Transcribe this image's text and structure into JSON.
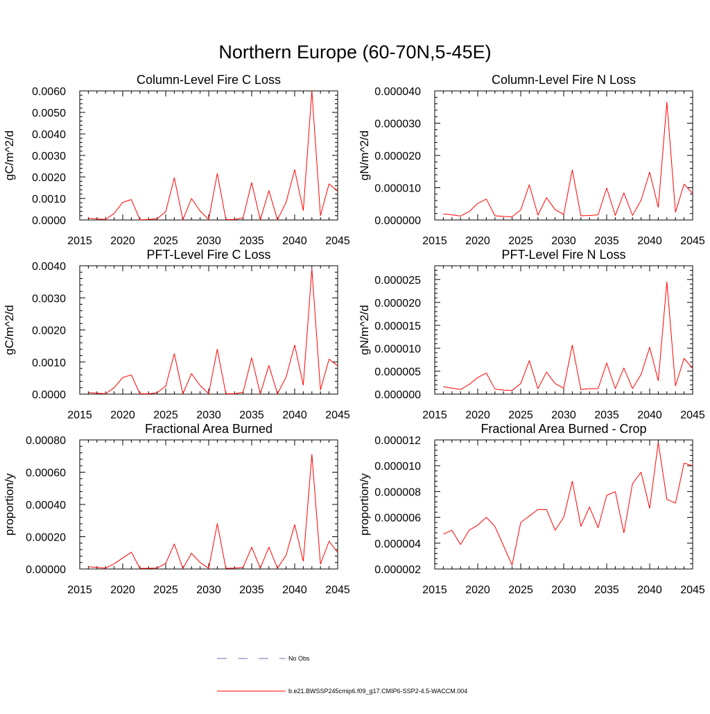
{
  "figure_title": "Northern Europe (60-70N,5-45E)",
  "legend": {
    "obs_label": "No Obs",
    "obs_color": "#6b6bb0",
    "model_label": "b.e21.BWSSP245cmip6.f09_g17.CMIP6-SSP2-4.5-WACCM.004",
    "model_color": "#ff0000"
  },
  "chart_data": [
    {
      "type": "line",
      "title": "Column-Level Fire C Loss",
      "ylabel": "gC/m^2/d",
      "xlim": [
        2015,
        2045
      ],
      "ylim": [
        0,
        0.006
      ],
      "xticks": [
        2015,
        2020,
        2025,
        2030,
        2035,
        2040,
        2045
      ],
      "xtick_labels": [
        "2015",
        "2020",
        "2025",
        "2030",
        "2035",
        "2040",
        "2045"
      ],
      "yticks": [
        0,
        0.001,
        0.002,
        0.003,
        0.004,
        0.005,
        0.006
      ],
      "ytick_labels": [
        "0.0000",
        "0.0010",
        "0.0020",
        "0.0030",
        "0.0040",
        "0.0050",
        "0.0060"
      ],
      "series": [
        {
          "name": "b.e21.BWSSP245cmip6.f09_g17.CMIP6-SSP2-4.5-WACCM.004",
          "x": [
            2016,
            2017,
            2018,
            2019,
            2020,
            2021,
            2022,
            2023,
            2024,
            2025,
            2026,
            2027,
            2028,
            2029,
            2030,
            2031,
            2032,
            2033,
            2034,
            2035,
            2036,
            2037,
            2038,
            2039,
            2040,
            2041,
            2042,
            2043,
            2044,
            2045
          ],
          "y": [
            8e-05,
            5e-05,
            2e-05,
            0.0003,
            0.00082,
            0.00095,
            1e-05,
            2e-05,
            6e-05,
            0.00038,
            0.00196,
            1e-05,
            0.001,
            0.00042,
            2e-05,
            0.00216,
            2e-05,
            2e-05,
            0.0001,
            0.00174,
            1e-05,
            0.00136,
            1e-05,
            0.00082,
            0.00234,
            0.00044,
            0.006,
            0.0002,
            0.00168,
            0.00134
          ]
        }
      ]
    },
    {
      "type": "line",
      "title": "Column-Level Fire N Loss",
      "ylabel": "gN/m^2/d",
      "xlim": [
        2015,
        2045
      ],
      "ylim": [
        0,
        4e-05
      ],
      "xticks": [
        2015,
        2020,
        2025,
        2030,
        2035,
        2040,
        2045
      ],
      "xtick_labels": [
        "2015",
        "2020",
        "2025",
        "2030",
        "2035",
        "2040",
        "2045"
      ],
      "yticks": [
        0,
        1e-05,
        2e-05,
        3e-05,
        4e-05
      ],
      "ytick_labels": [
        "0.000000",
        "0.000010",
        "0.000020",
        "0.000030",
        "0.000040"
      ],
      "series": [
        {
          "name": "b.e21.BWSSP245cmip6.f09_g17.CMIP6-SSP2-4.5-WACCM.004",
          "x": [
            2016,
            2017,
            2018,
            2019,
            2020,
            2021,
            2022,
            2023,
            2024,
            2025,
            2026,
            2027,
            2028,
            2029,
            2030,
            2031,
            2032,
            2033,
            2034,
            2035,
            2036,
            2037,
            2038,
            2039,
            2040,
            2041,
            2042,
            2043,
            2044,
            2045
          ],
          "y": [
            1.9e-06,
            1.6e-06,
            1.2e-06,
            2.6e-06,
            5.1e-06,
            6.5e-06,
            1.3e-06,
            1.1e-06,
            1e-06,
            3.1e-06,
            1.09e-05,
            1.5e-06,
            6.9e-06,
            3.2e-06,
            1.7e-06,
            1.55e-05,
            1.3e-06,
            1.4e-06,
            1.6e-06,
            9.9e-06,
            1.4e-06,
            8.4e-06,
            1.4e-06,
            6.1e-06,
            1.48e-05,
            3.9e-06,
            3.65e-05,
            2.4e-06,
            1.11e-05,
            8.2e-06
          ]
        }
      ]
    },
    {
      "type": "line",
      "title": "PFT-Level Fire C Loss",
      "ylabel": "gC/m^2/d",
      "xlim": [
        2015,
        2045
      ],
      "ylim": [
        0,
        0.004
      ],
      "xticks": [
        2015,
        2020,
        2025,
        2030,
        2035,
        2040,
        2045
      ],
      "xtick_labels": [
        "2015",
        "2020",
        "2025",
        "2030",
        "2035",
        "2040",
        "2045"
      ],
      "yticks": [
        0,
        0.001,
        0.002,
        0.003,
        0.004
      ],
      "ytick_labels": [
        "0.0000",
        "0.0010",
        "0.0020",
        "0.0030",
        "0.0040"
      ],
      "series": [
        {
          "name": "b.e21.BWSSP245cmip6.f09_g17.CMIP6-SSP2-4.5-WACCM.004",
          "x": [
            2016,
            2017,
            2018,
            2019,
            2020,
            2021,
            2022,
            2023,
            2024,
            2025,
            2026,
            2027,
            2028,
            2029,
            2030,
            2031,
            2032,
            2033,
            2034,
            2035,
            2036,
            2037,
            2038,
            2039,
            2040,
            2041,
            2042,
            2043,
            2044,
            2045
          ],
          "y": [
            5e-05,
            3e-05,
            1e-05,
            0.0002,
            0.00052,
            0.0006,
            1e-05,
            1e-05,
            4e-05,
            0.00025,
            0.00126,
            1e-05,
            0.00064,
            0.00027,
            1e-05,
            0.0014,
            1e-05,
            1e-05,
            6e-05,
            0.00113,
            1e-05,
            0.00089,
            1e-05,
            0.00053,
            0.00153,
            0.00028,
            0.0039,
            0.00013,
            0.00109,
            0.00088
          ]
        }
      ]
    },
    {
      "type": "line",
      "title": "PFT-Level Fire N Loss",
      "ylabel": "gN/m^2/d",
      "xlim": [
        2015,
        2045
      ],
      "ylim": [
        0,
        2.8e-05
      ],
      "xticks": [
        2015,
        2020,
        2025,
        2030,
        2035,
        2040,
        2045
      ],
      "xtick_labels": [
        "2015",
        "2020",
        "2025",
        "2030",
        "2035",
        "2040",
        "2045"
      ],
      "yticks": [
        0,
        5e-06,
        1e-05,
        1.5e-05,
        2e-05,
        2.5e-05
      ],
      "ytick_labels": [
        "0.000000",
        "0.000005",
        "0.000010",
        "0.000015",
        "0.000020",
        "0.000025"
      ],
      "series": [
        {
          "name": "b.e21.BWSSP245cmip6.f09_g17.CMIP6-SSP2-4.5-WACCM.004",
          "x": [
            2016,
            2017,
            2018,
            2019,
            2020,
            2021,
            2022,
            2023,
            2024,
            2025,
            2026,
            2027,
            2028,
            2029,
            2030,
            2031,
            2032,
            2033,
            2034,
            2035,
            2036,
            2037,
            2038,
            2039,
            2040,
            2041,
            2042,
            2043,
            2044,
            2045
          ],
          "y": [
            1.6e-06,
            1.3e-06,
            1e-06,
            2.1e-06,
            3.6e-06,
            4.6e-06,
            1.1e-06,
            9e-07,
            8e-07,
            2.3e-06,
            7.3e-06,
            1.2e-06,
            4.8e-06,
            2.3e-06,
            1.3e-06,
            1.07e-05,
            1e-06,
            1.2e-06,
            1.2e-06,
            6.8e-06,
            1.2e-06,
            5.7e-06,
            1.2e-06,
            4.3e-06,
            1.02e-05,
            2.9e-06,
            2.45e-05,
            1.8e-06,
            7.8e-06,
            5.6e-06
          ]
        }
      ]
    },
    {
      "type": "line",
      "title": "Fractional Area Burned",
      "ylabel": "proportion/y",
      "xlim": [
        2015,
        2045
      ],
      "ylim": [
        0,
        0.0008
      ],
      "xticks": [
        2015,
        2020,
        2025,
        2030,
        2035,
        2040,
        2045
      ],
      "xtick_labels": [
        "2015",
        "2020",
        "2025",
        "2030",
        "2035",
        "2040",
        "2045"
      ],
      "yticks": [
        0,
        0.0002,
        0.0004,
        0.0006,
        0.0008
      ],
      "ytick_labels": [
        "0.00000",
        "0.00020",
        "0.00040",
        "0.00060",
        "0.00080"
      ],
      "series": [
        {
          "name": "b.e21.BWSSP245cmip6.f09_g17.CMIP6-SSP2-4.5-WACCM.004",
          "x": [
            2016,
            2017,
            2018,
            2019,
            2020,
            2021,
            2022,
            2023,
            2024,
            2025,
            2026,
            2027,
            2028,
            2029,
            2030,
            2031,
            2032,
            2033,
            2034,
            2035,
            2036,
            2037,
            2038,
            2039,
            2040,
            2041,
            2042,
            2043,
            2044,
            2045
          ],
          "y": [
            1.4e-05,
            1e-05,
            5e-06,
            3.2e-05,
            6.8e-05,
            0.000104,
            4e-06,
            4e-06,
            6e-06,
            3.5e-05,
            0.000155,
            4e-06,
            9.7e-05,
            4e-05,
            4e-06,
            0.00028,
            4e-06,
            5e-06,
            1e-05,
            0.000135,
            5e-06,
            0.000135,
            5e-06,
            8.5e-05,
            0.000275,
            4.8e-05,
            0.00071,
            3e-05,
            0.000172,
            0.000102
          ]
        }
      ]
    },
    {
      "type": "line",
      "title": "Fractional Area Burned - Crop",
      "ylabel": "proportion/y",
      "xlim": [
        2015,
        2045
      ],
      "ylim": [
        2e-06,
        1.2e-05
      ],
      "xticks": [
        2015,
        2020,
        2025,
        2030,
        2035,
        2040,
        2045
      ],
      "xtick_labels": [
        "2015",
        "2020",
        "2025",
        "2030",
        "2035",
        "2040",
        "2045"
      ],
      "yticks": [
        2e-06,
        4e-06,
        6e-06,
        8e-06,
        1e-05,
        1.2e-05
      ],
      "ytick_labels": [
        "0.000002",
        "0.000004",
        "0.000006",
        "0.000008",
        "0.000010",
        "0.000012"
      ],
      "series": [
        {
          "name": "b.e21.BWSSP245cmip6.f09_g17.CMIP6-SSP2-4.5-WACCM.004",
          "x": [
            2016,
            2017,
            2018,
            2019,
            2020,
            2021,
            2022,
            2023,
            2024,
            2025,
            2026,
            2027,
            2028,
            2029,
            2030,
            2031,
            2032,
            2033,
            2034,
            2035,
            2036,
            2037,
            2038,
            2039,
            2040,
            2041,
            2042,
            2043,
            2044,
            2045
          ],
          "y": [
            4.7e-06,
            5e-06,
            3.9e-06,
            5e-06,
            5.4e-06,
            6e-06,
            5.3e-06,
            3.8e-06,
            2.3e-06,
            5.6e-06,
            6.1e-06,
            6.6e-06,
            6.6e-06,
            5e-06,
            6e-06,
            8.8e-06,
            5.3e-06,
            6.8e-06,
            5.2e-06,
            7.7e-06,
            8e-06,
            4.8e-06,
            8.6e-06,
            9.5e-06,
            6.7e-06,
            1.18e-05,
            7.4e-06,
            7.1e-06,
            1.02e-05,
            1e-05
          ]
        }
      ]
    }
  ]
}
